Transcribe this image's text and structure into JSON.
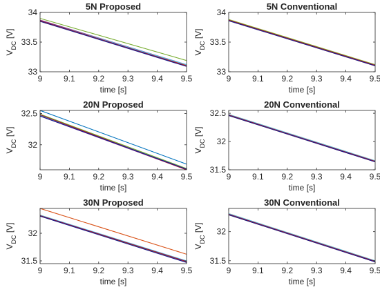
{
  "chart_data": [
    {
      "type": "line",
      "title": "5N Proposed",
      "xlabel": "time [s]",
      "ylabel": "V_DC [V]",
      "xlim": [
        9,
        9.5
      ],
      "ylim": [
        33,
        34
      ],
      "xticks": [
        9,
        9.1,
        9.2,
        9.3,
        9.4,
        9.5
      ],
      "xticklabels": [
        "9",
        "9.1",
        "9.2",
        "9.3",
        "9.4",
        "9.5"
      ],
      "yticks": [
        33,
        33.5,
        34
      ],
      "yticklabels": [
        "33",
        "33.5",
        "34"
      ],
      "grid": false,
      "series": [
        {
          "color": "#0072BD",
          "x": [
            9,
            9.5
          ],
          "y": [
            33.86,
            33.11
          ]
        },
        {
          "color": "#D95319",
          "x": [
            9,
            9.5
          ],
          "y": [
            33.87,
            33.11
          ]
        },
        {
          "color": "#EDB120",
          "x": [
            9,
            9.5
          ],
          "y": [
            33.85,
            33.1
          ]
        },
        {
          "color": "#7E2F8E",
          "x": [
            9,
            9.5
          ],
          "y": [
            33.87,
            33.12
          ]
        },
        {
          "color": "#77AC30",
          "x": [
            9,
            9.5
          ],
          "y": [
            33.9,
            33.19
          ]
        },
        {
          "color": "#4DBEEE",
          "x": [
            9,
            9.5
          ],
          "y": [
            33.86,
            33.12
          ]
        },
        {
          "color": "#A2142F",
          "x": [
            9,
            9.5
          ],
          "y": [
            33.86,
            33.1
          ]
        },
        {
          "color": "#1A1A8C",
          "x": [
            9,
            9.5
          ],
          "y": [
            33.85,
            33.09
          ]
        }
      ]
    },
    {
      "type": "line",
      "title": "5N Conventional",
      "xlabel": "time [s]",
      "ylabel": "V_DC [V]",
      "xlim": [
        9,
        9.5
      ],
      "ylim": [
        33,
        34
      ],
      "xticks": [
        9,
        9.1,
        9.2,
        9.3,
        9.4,
        9.5
      ],
      "xticklabels": [
        "9",
        "9.1",
        "9.2",
        "9.3",
        "9.4",
        "9.5"
      ],
      "yticks": [
        33,
        33.5,
        34
      ],
      "yticklabels": [
        "33",
        "33.5",
        "34"
      ],
      "grid": false,
      "series": [
        {
          "color": "#0072BD",
          "x": [
            9,
            9.5
          ],
          "y": [
            33.87,
            33.11
          ]
        },
        {
          "color": "#D95319",
          "x": [
            9,
            9.5
          ],
          "y": [
            33.86,
            33.1
          ]
        },
        {
          "color": "#EDB120",
          "x": [
            9,
            9.5
          ],
          "y": [
            33.88,
            33.12
          ]
        },
        {
          "color": "#7E2F8E",
          "x": [
            9,
            9.5
          ],
          "y": [
            33.87,
            33.1
          ]
        },
        {
          "color": "#77AC30",
          "x": [
            9,
            9.5
          ],
          "y": [
            33.88,
            33.12
          ]
        },
        {
          "color": "#4DBEEE",
          "x": [
            9,
            9.5
          ],
          "y": [
            33.86,
            33.11
          ]
        },
        {
          "color": "#A2142F",
          "x": [
            9,
            9.5
          ],
          "y": [
            33.87,
            33.11
          ]
        },
        {
          "color": "#1A1A8C",
          "x": [
            9,
            9.5
          ],
          "y": [
            33.86,
            33.1
          ]
        }
      ]
    },
    {
      "type": "line",
      "title": "20N Proposed",
      "xlabel": "time [s]",
      "ylabel": "V_DC [V]",
      "xlim": [
        9,
        9.5
      ],
      "ylim": [
        31.6,
        32.55
      ],
      "xticks": [
        9,
        9.1,
        9.2,
        9.3,
        9.4,
        9.5
      ],
      "xticklabels": [
        "9",
        "9.1",
        "9.2",
        "9.3",
        "9.4",
        "9.5"
      ],
      "yticks": [
        32,
        32.5
      ],
      "yticklabels": [
        "32",
        "32.5"
      ],
      "grid": false,
      "series": [
        {
          "color": "#0072BD",
          "x": [
            9,
            9.5
          ],
          "y": [
            32.55,
            31.69
          ]
        },
        {
          "color": "#D95319",
          "x": [
            9,
            9.5
          ],
          "y": [
            32.48,
            31.61
          ]
        },
        {
          "color": "#EDB120",
          "x": [
            9,
            9.5
          ],
          "y": [
            32.47,
            31.6
          ]
        },
        {
          "color": "#7E2F8E",
          "x": [
            9,
            9.5
          ],
          "y": [
            32.46,
            31.6
          ]
        },
        {
          "color": "#77AC30",
          "x": [
            9,
            9.5
          ],
          "y": [
            32.49,
            31.62
          ]
        },
        {
          "color": "#4DBEEE",
          "x": [
            9,
            9.5
          ],
          "y": [
            32.47,
            31.61
          ]
        },
        {
          "color": "#A2142F",
          "x": [
            9,
            9.5
          ],
          "y": [
            32.48,
            31.6
          ]
        },
        {
          "color": "#1A1A8C",
          "x": [
            9,
            9.5
          ],
          "y": [
            32.46,
            31.61
          ]
        }
      ]
    },
    {
      "type": "line",
      "title": "20N Conventional",
      "xlabel": "time [s]",
      "ylabel": "V_DC [V]",
      "xlim": [
        9,
        9.5
      ],
      "ylim": [
        31.5,
        32.55
      ],
      "xticks": [
        9,
        9.1,
        9.2,
        9.3,
        9.4,
        9.5
      ],
      "xticklabels": [
        "9",
        "9.1",
        "9.2",
        "9.3",
        "9.4",
        "9.5"
      ],
      "yticks": [
        31.5,
        32,
        32.5
      ],
      "yticklabels": [
        "31.5",
        "32",
        "32.5"
      ],
      "grid": false,
      "series": [
        {
          "color": "#0072BD",
          "x": [
            9,
            9.5
          ],
          "y": [
            32.47,
            31.65
          ]
        },
        {
          "color": "#D95319",
          "x": [
            9,
            9.5
          ],
          "y": [
            32.46,
            31.64
          ]
        },
        {
          "color": "#EDB120",
          "x": [
            9,
            9.5
          ],
          "y": [
            32.48,
            31.66
          ]
        },
        {
          "color": "#7E2F8E",
          "x": [
            9,
            9.5
          ],
          "y": [
            32.47,
            31.64
          ]
        },
        {
          "color": "#77AC30",
          "x": [
            9,
            9.5
          ],
          "y": [
            32.46,
            31.65
          ]
        },
        {
          "color": "#4DBEEE",
          "x": [
            9,
            9.5
          ],
          "y": [
            32.48,
            31.66
          ]
        },
        {
          "color": "#A2142F",
          "x": [
            9,
            9.5
          ],
          "y": [
            32.47,
            31.65
          ]
        },
        {
          "color": "#1A1A8C",
          "x": [
            9,
            9.5
          ],
          "y": [
            32.46,
            31.64
          ]
        }
      ]
    },
    {
      "type": "line",
      "title": "30N Proposed",
      "xlabel": "time [s]",
      "ylabel": "V_DC [V]",
      "xlim": [
        9,
        9.5
      ],
      "ylim": [
        31.45,
        32.45
      ],
      "xticks": [
        9,
        9.1,
        9.2,
        9.3,
        9.4,
        9.5
      ],
      "xticklabels": [
        "9",
        "9.1",
        "9.2",
        "9.3",
        "9.4",
        "9.5"
      ],
      "yticks": [
        31.5,
        32
      ],
      "yticklabels": [
        "31.5",
        "32"
      ],
      "grid": false,
      "series": [
        {
          "color": "#0072BD",
          "x": [
            9,
            9.5
          ],
          "y": [
            32.32,
            31.49
          ]
        },
        {
          "color": "#D95319",
          "x": [
            9,
            9.5
          ],
          "y": [
            32.45,
            31.62
          ]
        },
        {
          "color": "#EDB120",
          "x": [
            9,
            9.5
          ],
          "y": [
            32.33,
            31.48
          ]
        },
        {
          "color": "#7E2F8E",
          "x": [
            9,
            9.5
          ],
          "y": [
            32.32,
            31.48
          ]
        },
        {
          "color": "#77AC30",
          "x": [
            9,
            9.5
          ],
          "y": [
            32.31,
            31.49
          ]
        },
        {
          "color": "#4DBEEE",
          "x": [
            9,
            9.5
          ],
          "y": [
            32.33,
            31.5
          ]
        },
        {
          "color": "#A2142F",
          "x": [
            9,
            9.5
          ],
          "y": [
            32.32,
            31.49
          ]
        },
        {
          "color": "#1A1A8C",
          "x": [
            9,
            9.5
          ],
          "y": [
            32.31,
            31.47
          ]
        }
      ]
    },
    {
      "type": "line",
      "title": "30N Conventional",
      "xlabel": "time [s]",
      "ylabel": "V_DC [V]",
      "xlim": [
        9,
        9.5
      ],
      "ylim": [
        31.45,
        32.4
      ],
      "xticks": [
        9,
        9.1,
        9.2,
        9.3,
        9.4,
        9.5
      ],
      "xticklabels": [
        "9",
        "9.1",
        "9.2",
        "9.3",
        "9.4",
        "9.5"
      ],
      "yticks": [
        31.5,
        32
      ],
      "yticklabels": [
        "31.5",
        "32"
      ],
      "grid": false,
      "series": [
        {
          "color": "#0072BD",
          "x": [
            9,
            9.5
          ],
          "y": [
            32.3,
            31.49
          ]
        },
        {
          "color": "#D95319",
          "x": [
            9,
            9.5
          ],
          "y": [
            32.29,
            31.48
          ]
        },
        {
          "color": "#EDB120",
          "x": [
            9,
            9.5
          ],
          "y": [
            32.31,
            31.5
          ]
        },
        {
          "color": "#7E2F8E",
          "x": [
            9,
            9.5
          ],
          "y": [
            32.3,
            31.48
          ]
        },
        {
          "color": "#77AC30",
          "x": [
            9,
            9.5
          ],
          "y": [
            32.29,
            31.49
          ]
        },
        {
          "color": "#4DBEEE",
          "x": [
            9,
            9.5
          ],
          "y": [
            32.31,
            31.5
          ]
        },
        {
          "color": "#A2142F",
          "x": [
            9,
            9.5
          ],
          "y": [
            32.3,
            31.49
          ]
        },
        {
          "color": "#1A1A8C",
          "x": [
            9,
            9.5
          ],
          "y": [
            32.29,
            31.48
          ]
        }
      ]
    }
  ]
}
